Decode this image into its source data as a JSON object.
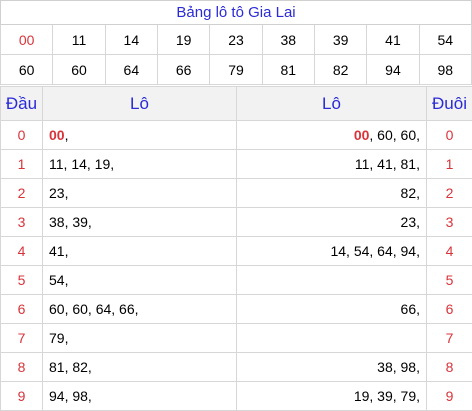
{
  "title": "Bảng lô tô Gia Lai",
  "numbers_row1": [
    "00",
    "11",
    "14",
    "19",
    "23",
    "38",
    "39",
    "41",
    "54"
  ],
  "numbers_row2": [
    "60",
    "60",
    "64",
    "66",
    "79",
    "81",
    "82",
    "94",
    "98"
  ],
  "table": {
    "headers": {
      "dau": "Đầu",
      "lo_left": "Lô",
      "lo_right": "Lô",
      "duoi": "Đuôi"
    },
    "rows": [
      {
        "dau": "0",
        "left_hl": "00",
        "left": ",",
        "right_hl": "00",
        "right": ", 60, 60,",
        "duoi": "0"
      },
      {
        "dau": "1",
        "left_hl": "",
        "left": "11, 14, 19,",
        "right_hl": "",
        "right": "11, 41, 81,",
        "duoi": "1"
      },
      {
        "dau": "2",
        "left_hl": "",
        "left": "23,",
        "right_hl": "",
        "right": "82,",
        "duoi": "2"
      },
      {
        "dau": "3",
        "left_hl": "",
        "left": "38, 39,",
        "right_hl": "",
        "right": "23,",
        "duoi": "3"
      },
      {
        "dau": "4",
        "left_hl": "",
        "left": "41,",
        "right_hl": "",
        "right": "14, 54, 64, 94,",
        "duoi": "4"
      },
      {
        "dau": "5",
        "left_hl": "",
        "left": "54,",
        "right_hl": "",
        "right": "",
        "duoi": "5"
      },
      {
        "dau": "6",
        "left_hl": "",
        "left": "60, 60, 64, 66,",
        "right_hl": "",
        "right": "66,",
        "duoi": "6"
      },
      {
        "dau": "7",
        "left_hl": "",
        "left": "79,",
        "right_hl": "",
        "right": "",
        "duoi": "7"
      },
      {
        "dau": "8",
        "left_hl": "",
        "left": "81, 82,",
        "right_hl": "",
        "right": "38, 98,",
        "duoi": "8"
      },
      {
        "dau": "9",
        "left_hl": "",
        "left": "94, 98,",
        "right_hl": "",
        "right": "19, 39, 79,",
        "duoi": "9"
      }
    ]
  }
}
